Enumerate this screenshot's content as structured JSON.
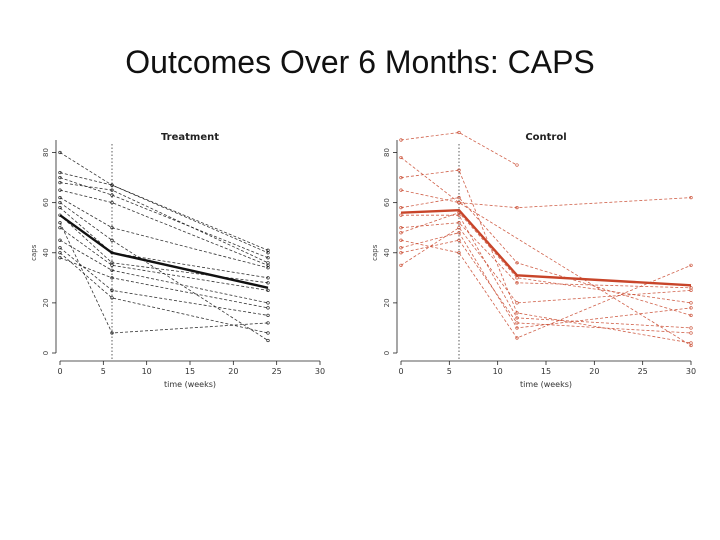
{
  "slide": {
    "title": "Outcomes Over 6 Months: CAPS"
  },
  "colors": {
    "treatment": "#111111",
    "control": "#c8452a",
    "axis": "#222222"
  },
  "chart_data": [
    {
      "type": "line",
      "title": "Treatment",
      "xlabel": "time (weeks)",
      "ylabel": "caps",
      "xticks": [
        "0",
        "5",
        "10",
        "15",
        "20",
        "25",
        "30"
      ],
      "yticks": [
        "0",
        "20",
        "40",
        "60",
        "80"
      ],
      "xlim": [
        0,
        30
      ],
      "ylim": [
        0,
        85
      ],
      "vline_x": 6,
      "color_key": "treatment",
      "series": [
        {
          "x": [
            0,
            6,
            24
          ],
          "y": [
            80,
            67,
            40
          ],
          "mean": false
        },
        {
          "x": [
            0,
            6,
            24
          ],
          "y": [
            72,
            67,
            41
          ],
          "mean": false
        },
        {
          "x": [
            0,
            6,
            24
          ],
          "y": [
            70,
            63,
            38
          ],
          "mean": false
        },
        {
          "x": [
            0,
            6,
            24
          ],
          "y": [
            68,
            65,
            36
          ],
          "mean": false
        },
        {
          "x": [
            0,
            6,
            24
          ],
          "y": [
            65,
            60,
            35
          ],
          "mean": false
        },
        {
          "x": [
            0,
            6,
            24
          ],
          "y": [
            62,
            50,
            34
          ],
          "mean": false
        },
        {
          "x": [
            0,
            6,
            24
          ],
          "y": [
            58,
            40,
            30
          ],
          "mean": false
        },
        {
          "x": [
            0,
            6,
            24
          ],
          "y": [
            55,
            36,
            28
          ],
          "mean": false
        },
        {
          "x": [
            0,
            6,
            24
          ],
          "y": [
            50,
            35,
            25
          ],
          "mean": false
        },
        {
          "x": [
            0,
            6,
            24
          ],
          "y": [
            45,
            33,
            20
          ],
          "mean": false
        },
        {
          "x": [
            0,
            6,
            24
          ],
          "y": [
            42,
            25,
            15
          ],
          "mean": false
        },
        {
          "x": [
            0,
            6,
            24
          ],
          "y": [
            40,
            22,
            8
          ],
          "mean": false
        },
        {
          "x": [
            0,
            6,
            24
          ],
          "y": [
            38,
            30,
            18
          ],
          "mean": false
        },
        {
          "x": [
            0,
            6,
            24
          ],
          "y": [
            52,
            8,
            12
          ],
          "mean": false
        },
        {
          "x": [
            0,
            6,
            24
          ],
          "y": [
            60,
            45,
            5
          ],
          "mean": false
        },
        {
          "x": [
            0,
            6,
            24
          ],
          "y": [
            55,
            40,
            26
          ],
          "mean": true
        }
      ]
    },
    {
      "type": "line",
      "title": "Control",
      "xlabel": "time (weeks)",
      "ylabel": "caps",
      "xticks": [
        "0",
        "5",
        "10",
        "15",
        "20",
        "25",
        "30"
      ],
      "yticks": [
        "0",
        "20",
        "40",
        "60",
        "80"
      ],
      "xlim": [
        0,
        30
      ],
      "ylim": [
        0,
        85
      ],
      "vline_x": 6,
      "color_key": "control",
      "series": [
        {
          "x": [
            0,
            6,
            12
          ],
          "y": [
            85,
            88,
            75
          ],
          "mean": false
        },
        {
          "x": [
            0,
            6,
            30
          ],
          "y": [
            78,
            60,
            3
          ],
          "mean": false
        },
        {
          "x": [
            0,
            6,
            12,
            30
          ],
          "y": [
            70,
            73,
            16,
            4
          ],
          "mean": false
        },
        {
          "x": [
            0,
            6,
            12,
            30
          ],
          "y": [
            65,
            60,
            58,
            62
          ],
          "mean": false
        },
        {
          "x": [
            0,
            6,
            12,
            30
          ],
          "y": [
            58,
            62,
            36,
            15
          ],
          "mean": false
        },
        {
          "x": [
            0,
            6,
            12,
            30
          ],
          "y": [
            55,
            55,
            14,
            10
          ],
          "mean": false
        },
        {
          "x": [
            0,
            6,
            12,
            30
          ],
          "y": [
            50,
            52,
            28,
            26
          ],
          "mean": false
        },
        {
          "x": [
            0,
            6,
            12,
            30
          ],
          "y": [
            45,
            40,
            6,
            35
          ],
          "mean": false
        },
        {
          "x": [
            0,
            6,
            12,
            30
          ],
          "y": [
            42,
            48,
            10,
            18
          ],
          "mean": false
        },
        {
          "x": [
            0,
            6,
            12,
            30
          ],
          "y": [
            35,
            50,
            20,
            25
          ],
          "mean": false
        },
        {
          "x": [
            0,
            6,
            12,
            30
          ],
          "y": [
            48,
            56,
            30,
            20
          ],
          "mean": false
        },
        {
          "x": [
            0,
            6,
            12,
            30
          ],
          "y": [
            40,
            45,
            12,
            8
          ],
          "mean": false
        },
        {
          "x": [
            0,
            6,
            12,
            30
          ],
          "y": [
            56,
            57,
            31,
            27
          ],
          "mean": true
        }
      ]
    }
  ]
}
